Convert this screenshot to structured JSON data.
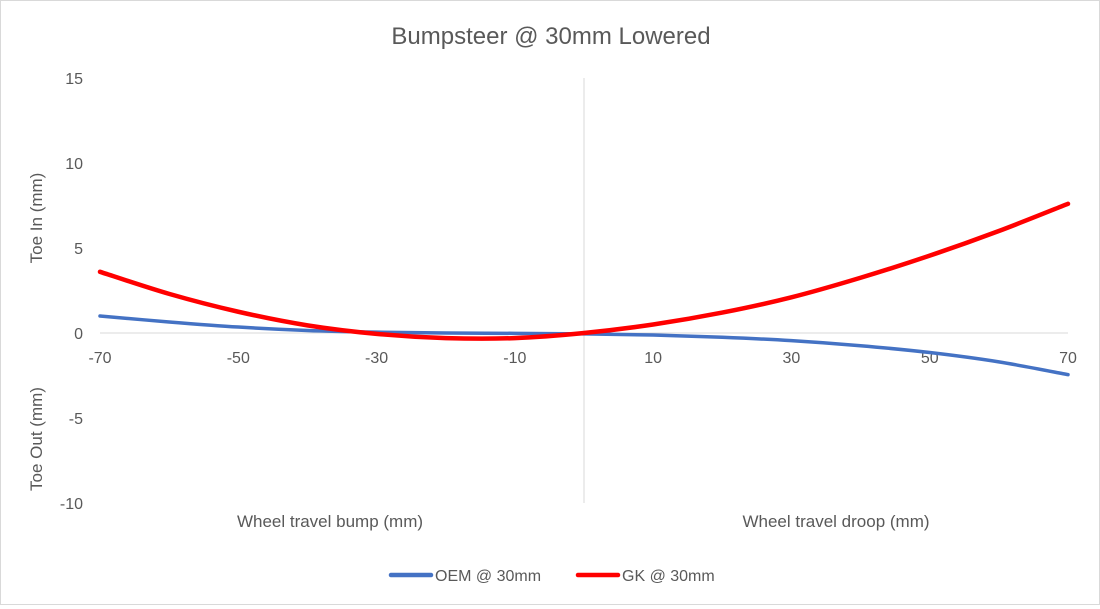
{
  "chart_data": {
    "type": "line",
    "title": "Bumpsteer @ 30mm Lowered",
    "ylabel_upper": "Toe In (mm)",
    "ylabel_lower": "Toe Out (mm)",
    "xlabel_left": "Wheel travel bump (mm)",
    "xlabel_right": "Wheel travel droop (mm)",
    "xlim": [
      -70,
      70
    ],
    "ylim": [
      -10,
      15
    ],
    "x_ticks": [
      -70,
      -50,
      -30,
      -10,
      10,
      30,
      50,
      70
    ],
    "y_ticks": [
      -10,
      -5,
      0,
      5,
      10,
      15
    ],
    "grid": false,
    "legend_position": "bottom",
    "series": [
      {
        "name": "OEM @ 30mm",
        "color": "#4472C4",
        "x": [
          -70,
          -60,
          -50,
          -40,
          -30,
          -20,
          -10,
          0,
          10,
          20,
          30,
          40,
          50,
          60,
          70
        ],
        "y": [
          1.0,
          0.65,
          0.35,
          0.15,
          0.05,
          0.0,
          -0.02,
          -0.05,
          -0.12,
          -0.25,
          -0.45,
          -0.75,
          -1.15,
          -1.7,
          -2.45
        ]
      },
      {
        "name": "GK @ 30mm",
        "color": "#FF0000",
        "x": [
          -70,
          -60,
          -50,
          -40,
          -30,
          -20,
          -10,
          0,
          10,
          20,
          30,
          40,
          50,
          60,
          70
        ],
        "y": [
          3.6,
          2.3,
          1.25,
          0.45,
          -0.05,
          -0.3,
          -0.3,
          0.0,
          0.5,
          1.2,
          2.1,
          3.25,
          4.55,
          6.0,
          7.6
        ]
      }
    ]
  }
}
